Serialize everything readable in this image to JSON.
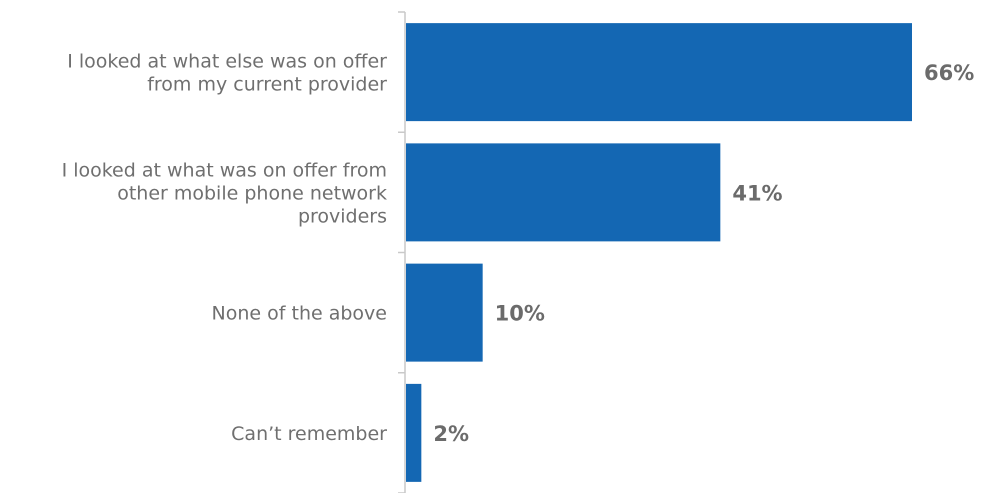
{
  "chart_data": {
    "type": "bar",
    "orientation": "horizontal",
    "categories": [
      "I looked at what else was on offer from my current provider",
      "I looked at what was on offer from other mobile phone network providers",
      "None of the above",
      "Can’t remember"
    ],
    "category_label_lines": [
      [
        "I looked at what else was on offer",
        "from my current provider"
      ],
      [
        "I looked at what was on offer from",
        "other mobile phone network",
        "providers"
      ],
      [
        "None of the above"
      ],
      [
        "Can’t remember"
      ]
    ],
    "values": [
      66,
      41,
      10,
      2
    ],
    "value_labels": [
      "66%",
      "41%",
      "10%",
      "2%"
    ],
    "xlim": [
      0,
      66
    ],
    "grid": false,
    "legend": "none",
    "bar_color": "#1467b3",
    "axis_color": "#c9c9c9",
    "label_color": "#6f6f6f",
    "value_label_color": "#6b6b6b"
  }
}
